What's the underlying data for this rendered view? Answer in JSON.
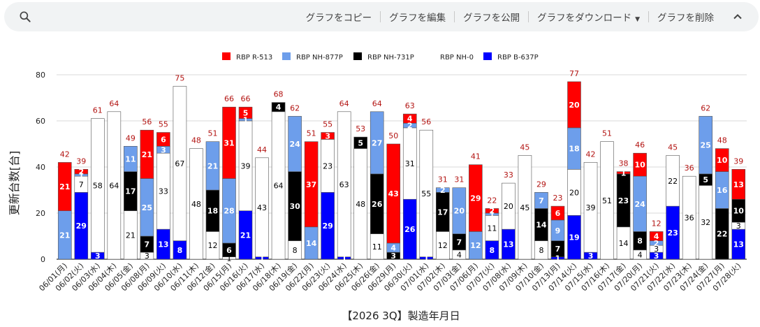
{
  "toolbar": {
    "search_icon": "search-icon",
    "copy_label": "グラフをコピー",
    "edit_label": "グラフを編集",
    "publish_label": "グラフを公開",
    "download_label": "グラフをダウンロード",
    "delete_label": "グラフを削除",
    "collapse_icon": "chevron-up-icon"
  },
  "chart_data": {
    "type": "bar",
    "stacked": true,
    "title": "",
    "xlabel": "【2026 3Q】製造年月日",
    "ylabel": "更新台数[台]",
    "ylim": [
      0,
      80
    ],
    "yticks": [
      0,
      20,
      40,
      60,
      80
    ],
    "grid": true,
    "legend_position": "top",
    "total_label_color": "#b31412",
    "categories": [
      "06/01(月)",
      "06/02(火)",
      "06/03(水)",
      "06/04(木)",
      "06/05(金)",
      "06/08(月)",
      "06/09(火)",
      "06/10(水)",
      "06/11(木)",
      "06/12(金)",
      "06/15(月)",
      "06/16(火)",
      "06/17(水)",
      "06/18(木)",
      "06/19(金)",
      "06/22(月)",
      "06/23(火)",
      "06/24(水)",
      "06/25(木)",
      "06/26(金)",
      "06/29(月)",
      "06/30(火)",
      "07/01(水)",
      "07/02(木)",
      "07/03(金)",
      "07/06(月)",
      "07/07(火)",
      "07/08(水)",
      "07/09(木)",
      "07/10(金)",
      "07/13(月)",
      "07/14(火)",
      "07/15(水)",
      "07/16(木)",
      "07/17(金)",
      "07/20(月)",
      "07/21(火)",
      "07/22(水)",
      "07/23(木)",
      "07/24(金)",
      "07/27(月)",
      "07/28(火)"
    ],
    "totals": [
      42,
      39,
      61,
      64,
      49,
      56,
      55,
      75,
      48,
      51,
      66,
      66,
      44,
      68,
      62,
      51,
      55,
      64,
      53,
      64,
      50,
      63,
      56,
      31,
      31,
      41,
      22,
      33,
      45,
      29,
      23,
      77,
      42,
      51,
      38,
      46,
      12,
      45,
      36,
      62,
      48,
      39
    ],
    "series": [
      {
        "name": "RBP B-637P",
        "color": "#0000ff",
        "label_color": "#ffffff",
        "values": [
          0,
          29,
          3,
          0,
          0,
          0,
          13,
          8,
          0,
          0,
          0,
          21,
          1,
          0,
          0,
          0,
          29,
          1,
          0,
          0,
          0,
          26,
          1,
          0,
          0,
          0,
          8,
          13,
          0,
          0,
          1,
          19,
          3,
          0,
          0,
          0,
          3,
          23,
          0,
          0,
          0,
          13
        ]
      },
      {
        "name": "RBP NH-0",
        "color": "#ffffff",
        "label_color": "#000000",
        "values": [
          0,
          7,
          58,
          64,
          21,
          3,
          33,
          67,
          48,
          12,
          1,
          39,
          43,
          64,
          8,
          0,
          23,
          63,
          48,
          11,
          0,
          31,
          55,
          12,
          4,
          0,
          11,
          20,
          45,
          8,
          0,
          20,
          39,
          51,
          14,
          4,
          3,
          22,
          36,
          32,
          0,
          3
        ]
      },
      {
        "name": "RBP NH-731P",
        "color": "#000000",
        "label_color": "#ffffff",
        "values": [
          0,
          0,
          0,
          0,
          17,
          7,
          0,
          0,
          0,
          18,
          6,
          0,
          0,
          4,
          30,
          0,
          0,
          0,
          5,
          26,
          3,
          0,
          0,
          17,
          7,
          0,
          0,
          0,
          0,
          14,
          7,
          0,
          0,
          0,
          23,
          8,
          0,
          0,
          0,
          5,
          22,
          10
        ]
      },
      {
        "name": "RBP NH-877P",
        "color": "#6d9eeb",
        "label_color": "#ffffff",
        "values": [
          21,
          1,
          0,
          0,
          11,
          25,
          3,
          0,
          0,
          21,
          28,
          1,
          0,
          0,
          24,
          14,
          0,
          0,
          0,
          27,
          4,
          2,
          0,
          2,
          20,
          12,
          1,
          0,
          0,
          7,
          9,
          18,
          0,
          0,
          0,
          24,
          2,
          0,
          0,
          25,
          16,
          0
        ]
      },
      {
        "name": "RBP R-513",
        "color": "#ff0000",
        "label_color": "#ffffff",
        "values": [
          21,
          2,
          0,
          0,
          0,
          21,
          6,
          0,
          0,
          0,
          31,
          5,
          0,
          0,
          0,
          37,
          3,
          0,
          0,
          0,
          43,
          4,
          0,
          0,
          0,
          29,
          2,
          0,
          0,
          0,
          6,
          20,
          0,
          0,
          1,
          10,
          4,
          0,
          0,
          0,
          10,
          13
        ]
      }
    ],
    "legend_order": [
      "RBP R-513",
      "RBP NH-877P",
      "RBP NH-731P",
      "RBP NH-0",
      "RBP B-637P"
    ]
  }
}
